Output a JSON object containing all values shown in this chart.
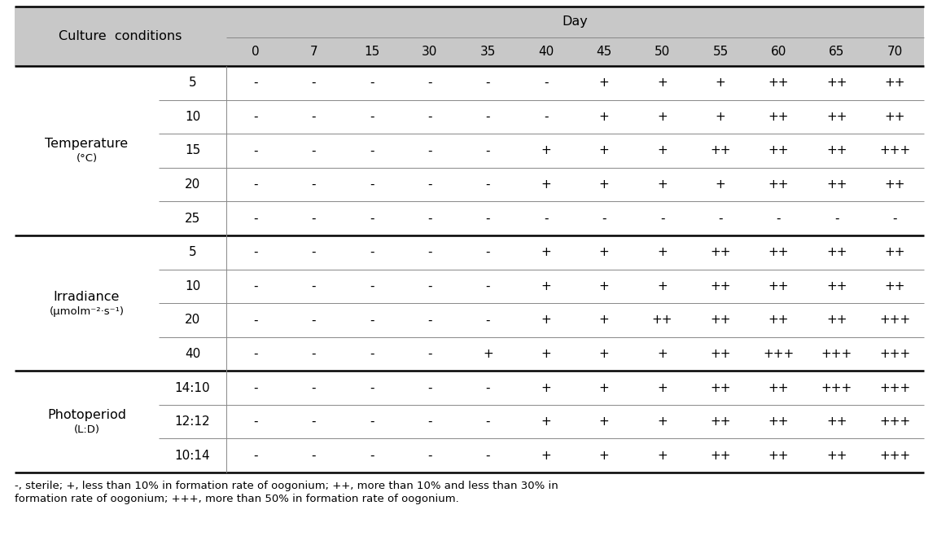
{
  "col_headers": [
    "0",
    "7",
    "15",
    "30",
    "35",
    "40",
    "45",
    "50",
    "55",
    "60",
    "65",
    "70"
  ],
  "day_label": "Day",
  "culture_label": "Culture  conditions",
  "header_bg": "#c8c8c8",
  "sections": [
    {
      "group_label": "Temperature",
      "group_sublabel": "(°C)",
      "rows": [
        {
          "sub": "5",
          "values": [
            "-",
            "-",
            "-",
            "-",
            "-",
            "-",
            "+",
            "+",
            "+",
            "++",
            "++",
            "++"
          ]
        },
        {
          "sub": "10",
          "values": [
            "-",
            "-",
            "-",
            "-",
            "-",
            "-",
            "+",
            "+",
            "+",
            "++",
            "++",
            "++"
          ]
        },
        {
          "sub": "15",
          "values": [
            "-",
            "-",
            "-",
            "-",
            "-",
            "+",
            "+",
            "+",
            "++",
            "++",
            "++",
            "+++"
          ]
        },
        {
          "sub": "20",
          "values": [
            "-",
            "-",
            "-",
            "-",
            "-",
            "+",
            "+",
            "+",
            "+",
            "++",
            "++",
            "++"
          ]
        },
        {
          "sub": "25",
          "values": [
            "-",
            "-",
            "-",
            "-",
            "-",
            "-",
            "-",
            "-",
            "-",
            "-",
            "-",
            "-"
          ]
        }
      ]
    },
    {
      "group_label": "Irradiance",
      "group_sublabel": "(μmolm⁻²·s⁻¹)",
      "rows": [
        {
          "sub": "5",
          "values": [
            "-",
            "-",
            "-",
            "-",
            "-",
            "+",
            "+",
            "+",
            "++",
            "++",
            "++",
            "++"
          ]
        },
        {
          "sub": "10",
          "values": [
            "-",
            "-",
            "-",
            "-",
            "-",
            "+",
            "+",
            "+",
            "++",
            "++",
            "++",
            "++"
          ]
        },
        {
          "sub": "20",
          "values": [
            "-",
            "-",
            "-",
            "-",
            "-",
            "+",
            "+",
            "++",
            "++",
            "++",
            "++",
            "+++"
          ]
        },
        {
          "sub": "40",
          "values": [
            "-",
            "-",
            "-",
            "-",
            "+",
            "+",
            "+",
            "+",
            "++",
            "+++",
            "+++",
            "+++"
          ]
        }
      ]
    },
    {
      "group_label": "Photoperiod",
      "group_sublabel": "(L:D)",
      "rows": [
        {
          "sub": "14:10",
          "values": [
            "-",
            "-",
            "-",
            "-",
            "-",
            "+",
            "+",
            "+",
            "++",
            "++",
            "+++",
            "+++"
          ]
        },
        {
          "sub": "12:12",
          "values": [
            "-",
            "-",
            "-",
            "-",
            "-",
            "+",
            "+",
            "+",
            "++",
            "++",
            "++",
            "+++"
          ]
        },
        {
          "sub": "10:14",
          "values": [
            "-",
            "-",
            "-",
            "-",
            "-",
            "+",
            "+",
            "+",
            "++",
            "++",
            "++",
            "+++"
          ]
        }
      ]
    }
  ],
  "footer_line1": "-, sterile; +, less than 10% in formation rate of oogonium; ++, more than 10% and less than 30% in",
  "footer_line2": "formation rate of oogonium; +++, more than 50% in formation rate of oogonium.",
  "bg_color": "#ffffff",
  "header_text_color": "#000000",
  "cell_text_color": "#000000",
  "thin_line_color": "#888888",
  "thick_line_color": "#000000",
  "lw_thin": 0.7,
  "lw_thick": 1.8,
  "fontsize_header": 11.5,
  "fontsize_cell": 11,
  "fontsize_footer": 9.5
}
